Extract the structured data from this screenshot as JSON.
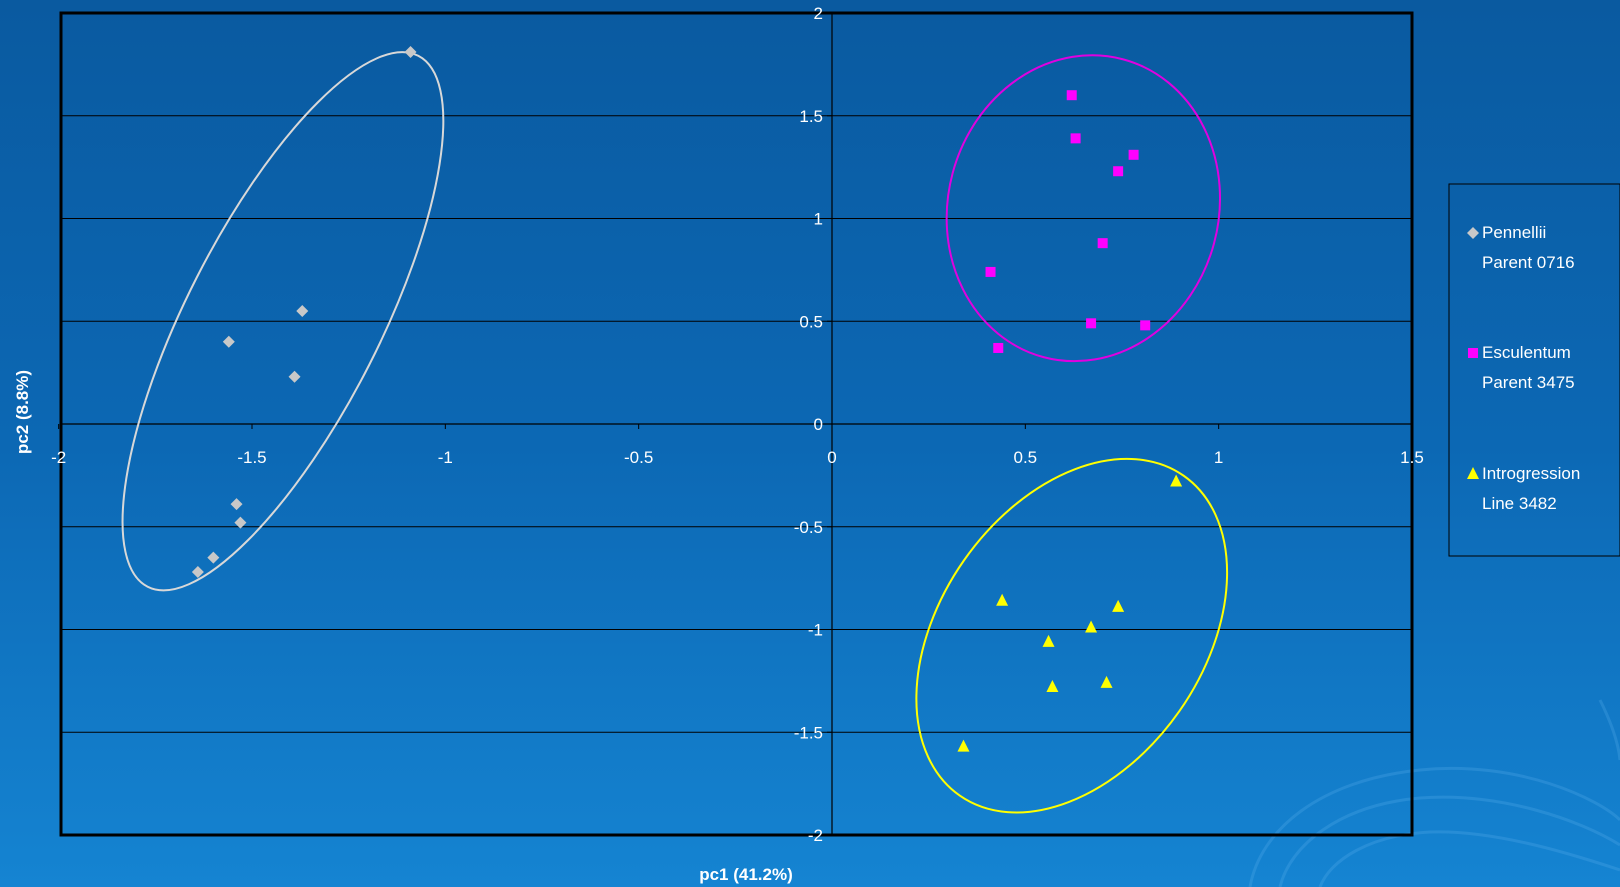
{
  "chart_data": {
    "type": "scatter",
    "xlabel": "pc1 (41.2%)",
    "ylabel": "pc2 (8.8%)",
    "xlim": [
      -2,
      1.5
    ],
    "ylim": [
      -2,
      2
    ],
    "xticks": [
      -2,
      -1.5,
      -1,
      -0.5,
      0,
      0.5,
      1,
      1.5
    ],
    "yticks": [
      -2,
      -1.5,
      -1,
      -0.5,
      0,
      0.5,
      1,
      1.5,
      2
    ],
    "grid": "horizontal",
    "legend_position": "right",
    "series": [
      {
        "name": "Pennellii Parent 0716",
        "legend_lines": [
          "Pennellii",
          "Parent 0716"
        ],
        "marker": "diamond",
        "color": "#c8c8c8",
        "ellipse_color": "#d8d8d8",
        "x": [
          -1.09,
          -1.37,
          -1.56,
          -1.39,
          -1.54,
          -1.53,
          -1.6,
          -1.64
        ],
        "y": [
          1.81,
          0.55,
          0.4,
          0.23,
          -0.39,
          -0.48,
          -0.65,
          -0.72
        ]
      },
      {
        "name": "Esculentum Parent 3475",
        "legend_lines": [
          "Esculentum",
          "Parent 3475"
        ],
        "marker": "square",
        "color": "#ff00ff",
        "ellipse_color": "#e000e0",
        "x": [
          0.62,
          0.63,
          0.78,
          0.74,
          0.41,
          0.7,
          0.43,
          0.67,
          0.81
        ],
        "y": [
          1.6,
          1.39,
          1.31,
          1.23,
          0.74,
          0.88,
          0.37,
          0.49,
          0.48
        ]
      },
      {
        "name": "Introgression Line 3482",
        "legend_lines": [
          "Introgression",
          "Line 3482"
        ],
        "marker": "triangle",
        "color": "#ffff00",
        "ellipse_color": "#ffff00",
        "x": [
          0.89,
          0.44,
          0.74,
          0.67,
          0.56,
          0.71,
          0.57,
          0.34
        ],
        "y": [
          -0.28,
          -0.86,
          -0.89,
          -0.99,
          -1.06,
          -1.26,
          -1.28,
          -1.57
        ]
      }
    ],
    "ellipses": [
      {
        "series": "Pennellii Parent 0716",
        "center": [
          -1.42,
          0.5
        ],
        "radii": [
          0.25,
          1.45
        ],
        "rotation_deg": 27
      },
      {
        "series": "Esculentum Parent 3475",
        "center": [
          0.65,
          1.05
        ],
        "radii": [
          0.35,
          0.75
        ],
        "rotation_deg": 15
      },
      {
        "series": "Introgression Line 3482",
        "center": [
          0.62,
          -1.03
        ],
        "radii": [
          0.34,
          0.95
        ],
        "rotation_deg": 35
      }
    ]
  }
}
